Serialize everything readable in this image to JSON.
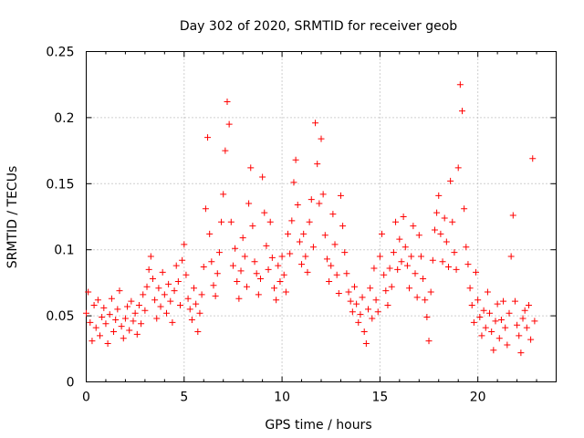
{
  "chart_data": {
    "type": "scatter",
    "title": "Day 302 of 2020, SRMTID for receiver geob",
    "xlabel": "GPS time / hours",
    "ylabel": "SRMTID / TECUs",
    "xlim": [
      0,
      24
    ],
    "ylim": [
      0,
      0.25
    ],
    "x_ticks": [
      0,
      5,
      10,
      15,
      20
    ],
    "x_tick_labels": [
      "0",
      "5",
      "10",
      "15",
      "20"
    ],
    "y_ticks": [
      0,
      0.05,
      0.1,
      0.15,
      0.2,
      0.25
    ],
    "y_tick_labels": [
      "0",
      "0.05",
      "0.1",
      "0.15",
      "0.2",
      "0.25"
    ],
    "grid": true,
    "marker": "+",
    "color": "#ff0000",
    "series": [
      {
        "name": "SRMTID",
        "points": [
          [
            0.0,
            0.052
          ],
          [
            0.1,
            0.068
          ],
          [
            0.2,
            0.045
          ],
          [
            0.3,
            0.031
          ],
          [
            0.4,
            0.058
          ],
          [
            0.5,
            0.041
          ],
          [
            0.6,
            0.062
          ],
          [
            0.7,
            0.035
          ],
          [
            0.8,
            0.049
          ],
          [
            0.9,
            0.056
          ],
          [
            1.0,
            0.044
          ],
          [
            1.1,
            0.029
          ],
          [
            1.2,
            0.051
          ],
          [
            1.3,
            0.063
          ],
          [
            1.4,
            0.038
          ],
          [
            1.5,
            0.047
          ],
          [
            1.6,
            0.055
          ],
          [
            1.7,
            0.069
          ],
          [
            1.8,
            0.042
          ],
          [
            1.9,
            0.033
          ],
          [
            2.0,
            0.048
          ],
          [
            2.1,
            0.057
          ],
          [
            2.2,
            0.039
          ],
          [
            2.3,
            0.061
          ],
          [
            2.4,
            0.046
          ],
          [
            2.5,
            0.052
          ],
          [
            2.6,
            0.036
          ],
          [
            2.7,
            0.058
          ],
          [
            2.8,
            0.044
          ],
          [
            2.9,
            0.066
          ],
          [
            3.0,
            0.054
          ],
          [
            3.1,
            0.072
          ],
          [
            3.2,
            0.085
          ],
          [
            3.3,
            0.095
          ],
          [
            3.4,
            0.078
          ],
          [
            3.5,
            0.062
          ],
          [
            3.6,
            0.048
          ],
          [
            3.7,
            0.071
          ],
          [
            3.8,
            0.057
          ],
          [
            3.9,
            0.083
          ],
          [
            4.0,
            0.066
          ],
          [
            4.1,
            0.052
          ],
          [
            4.2,
            0.074
          ],
          [
            4.3,
            0.061
          ],
          [
            4.4,
            0.045
          ],
          [
            4.5,
            0.069
          ],
          [
            4.6,
            0.088
          ],
          [
            4.7,
            0.076
          ],
          [
            4.8,
            0.058
          ],
          [
            4.9,
            0.092
          ],
          [
            5.0,
            0.104
          ],
          [
            5.1,
            0.081
          ],
          [
            5.2,
            0.063
          ],
          [
            5.3,
            0.055
          ],
          [
            5.4,
            0.047
          ],
          [
            5.5,
            0.071
          ],
          [
            5.6,
            0.059
          ],
          [
            5.7,
            0.038
          ],
          [
            5.8,
            0.052
          ],
          [
            5.9,
            0.066
          ],
          [
            6.0,
            0.087
          ],
          [
            6.1,
            0.131
          ],
          [
            6.2,
            0.185
          ],
          [
            6.3,
            0.112
          ],
          [
            6.4,
            0.091
          ],
          [
            6.5,
            0.073
          ],
          [
            6.6,
            0.065
          ],
          [
            6.7,
            0.082
          ],
          [
            6.8,
            0.098
          ],
          [
            6.9,
            0.121
          ],
          [
            7.0,
            0.142
          ],
          [
            7.1,
            0.175
          ],
          [
            7.2,
            0.212
          ],
          [
            7.3,
            0.195
          ],
          [
            7.4,
            0.121
          ],
          [
            7.5,
            0.088
          ],
          [
            7.6,
            0.101
          ],
          [
            7.7,
            0.076
          ],
          [
            7.8,
            0.063
          ],
          [
            7.9,
            0.084
          ],
          [
            8.0,
            0.109
          ],
          [
            8.1,
            0.095
          ],
          [
            8.2,
            0.072
          ],
          [
            8.3,
            0.135
          ],
          [
            8.4,
            0.162
          ],
          [
            8.5,
            0.118
          ],
          [
            8.6,
            0.091
          ],
          [
            8.7,
            0.082
          ],
          [
            8.8,
            0.066
          ],
          [
            8.9,
            0.078
          ],
          [
            9.0,
            0.155
          ],
          [
            9.1,
            0.128
          ],
          [
            9.2,
            0.103
          ],
          [
            9.3,
            0.085
          ],
          [
            9.4,
            0.121
          ],
          [
            9.5,
            0.094
          ],
          [
            9.6,
            0.071
          ],
          [
            9.7,
            0.062
          ],
          [
            9.8,
            0.088
          ],
          [
            9.9,
            0.076
          ],
          [
            10.0,
            0.095
          ],
          [
            10.1,
            0.081
          ],
          [
            10.2,
            0.068
          ],
          [
            10.3,
            0.112
          ],
          [
            10.4,
            0.097
          ],
          [
            10.5,
            0.122
          ],
          [
            10.6,
            0.151
          ],
          [
            10.7,
            0.168
          ],
          [
            10.8,
            0.134
          ],
          [
            10.9,
            0.106
          ],
          [
            11.0,
            0.089
          ],
          [
            11.1,
            0.112
          ],
          [
            11.2,
            0.095
          ],
          [
            11.3,
            0.083
          ],
          [
            11.4,
            0.121
          ],
          [
            11.5,
            0.138
          ],
          [
            11.6,
            0.102
          ],
          [
            11.7,
            0.196
          ],
          [
            11.8,
            0.165
          ],
          [
            11.9,
            0.135
          ],
          [
            12.0,
            0.184
          ],
          [
            12.1,
            0.142
          ],
          [
            12.2,
            0.111
          ],
          [
            12.3,
            0.093
          ],
          [
            12.4,
            0.076
          ],
          [
            12.5,
            0.088
          ],
          [
            12.6,
            0.127
          ],
          [
            12.7,
            0.104
          ],
          [
            12.8,
            0.081
          ],
          [
            12.9,
            0.067
          ],
          [
            13.0,
            0.141
          ],
          [
            13.1,
            0.118
          ],
          [
            13.2,
            0.098
          ],
          [
            13.3,
            0.082
          ],
          [
            13.4,
            0.068
          ],
          [
            13.5,
            0.061
          ],
          [
            13.6,
            0.053
          ],
          [
            13.7,
            0.072
          ],
          [
            13.8,
            0.059
          ],
          [
            13.9,
            0.045
          ],
          [
            14.0,
            0.051
          ],
          [
            14.1,
            0.064
          ],
          [
            14.2,
            0.038
          ],
          [
            14.3,
            0.029
          ],
          [
            14.4,
            0.055
          ],
          [
            14.5,
            0.071
          ],
          [
            14.6,
            0.048
          ],
          [
            14.7,
            0.086
          ],
          [
            14.8,
            0.062
          ],
          [
            14.9,
            0.053
          ],
          [
            15.0,
            0.095
          ],
          [
            15.1,
            0.112
          ],
          [
            15.2,
            0.081
          ],
          [
            15.3,
            0.069
          ],
          [
            15.4,
            0.058
          ],
          [
            15.5,
            0.086
          ],
          [
            15.6,
            0.072
          ],
          [
            15.7,
            0.098
          ],
          [
            15.8,
            0.121
          ],
          [
            15.9,
            0.085
          ],
          [
            16.0,
            0.108
          ],
          [
            16.1,
            0.091
          ],
          [
            16.2,
            0.125
          ],
          [
            16.3,
            0.102
          ],
          [
            16.4,
            0.088
          ],
          [
            16.5,
            0.071
          ],
          [
            16.6,
            0.095
          ],
          [
            16.7,
            0.118
          ],
          [
            16.8,
            0.082
          ],
          [
            16.9,
            0.064
          ],
          [
            17.0,
            0.111
          ],
          [
            17.1,
            0.095
          ],
          [
            17.2,
            0.078
          ],
          [
            17.3,
            0.062
          ],
          [
            17.4,
            0.049
          ],
          [
            17.5,
            0.031
          ],
          [
            17.6,
            0.068
          ],
          [
            17.7,
            0.092
          ],
          [
            17.8,
            0.115
          ],
          [
            17.9,
            0.128
          ],
          [
            18.0,
            0.141
          ],
          [
            18.1,
            0.112
          ],
          [
            18.2,
            0.091
          ],
          [
            18.3,
            0.124
          ],
          [
            18.4,
            0.106
          ],
          [
            18.5,
            0.087
          ],
          [
            18.6,
            0.152
          ],
          [
            18.7,
            0.121
          ],
          [
            18.8,
            0.098
          ],
          [
            18.9,
            0.085
          ],
          [
            19.0,
            0.162
          ],
          [
            19.1,
            0.225
          ],
          [
            19.2,
            0.205
          ],
          [
            19.3,
            0.131
          ],
          [
            19.4,
            0.102
          ],
          [
            19.5,
            0.089
          ],
          [
            19.6,
            0.071
          ],
          [
            19.7,
            0.058
          ],
          [
            19.8,
            0.045
          ],
          [
            19.9,
            0.083
          ],
          [
            20.0,
            0.062
          ],
          [
            20.1,
            0.049
          ],
          [
            20.2,
            0.035
          ],
          [
            20.3,
            0.054
          ],
          [
            20.4,
            0.041
          ],
          [
            20.5,
            0.068
          ],
          [
            20.6,
            0.052
          ],
          [
            20.7,
            0.038
          ],
          [
            20.8,
            0.024
          ],
          [
            20.9,
            0.046
          ],
          [
            21.0,
            0.059
          ],
          [
            21.1,
            0.033
          ],
          [
            21.2,
            0.047
          ],
          [
            21.3,
            0.061
          ],
          [
            21.4,
            0.041
          ],
          [
            21.5,
            0.028
          ],
          [
            21.6,
            0.052
          ],
          [
            21.7,
            0.095
          ],
          [
            21.8,
            0.126
          ],
          [
            21.9,
            0.061
          ],
          [
            22.0,
            0.043
          ],
          [
            22.1,
            0.035
          ],
          [
            22.2,
            0.022
          ],
          [
            22.3,
            0.048
          ],
          [
            22.4,
            0.054
          ],
          [
            22.5,
            0.041
          ],
          [
            22.6,
            0.058
          ],
          [
            22.7,
            0.032
          ],
          [
            22.8,
            0.169
          ],
          [
            22.9,
            0.046
          ]
        ]
      }
    ]
  }
}
